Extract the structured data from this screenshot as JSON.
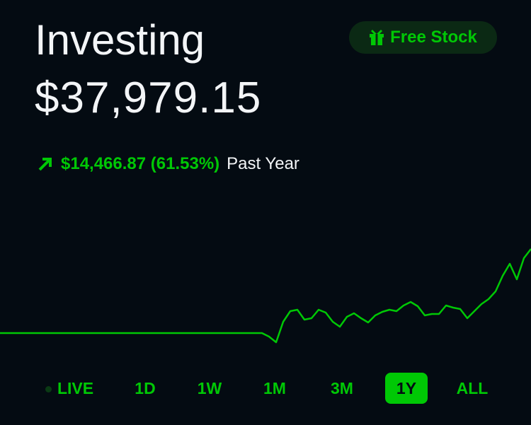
{
  "header": {
    "title": "Investing",
    "balance": "$37,979.15",
    "free_stock": "Free Stock"
  },
  "change": {
    "amount": "$14,466.87 (61.53%)",
    "period": "Past Year"
  },
  "chart_data": {
    "type": "line",
    "color": "#00c805",
    "values": [
      23512.28,
      23512.28,
      23512.28,
      23512.28,
      23512.28,
      23512.28,
      23512.28,
      23512.28,
      23512.28,
      23512.28,
      23512.28,
      23512.28,
      23512.28,
      23512.28,
      23512.28,
      23512.28,
      23512.28,
      23512.28,
      23512.28,
      23512.28,
      23512.28,
      23512.28,
      23512.28,
      23512.28,
      23512.28,
      23512.28,
      23512.28,
      23512.28,
      23512.28,
      23512.28,
      23512.28,
      23512.28,
      23512.28,
      23512.28,
      23512.28,
      23512.28,
      23512.28,
      23512.28,
      22904,
      21932,
      25457,
      27281,
      27524,
      25822,
      26065,
      27524,
      27038,
      25457,
      24606,
      26308,
      26916,
      26065,
      25336,
      26551,
      27159,
      27524,
      27281,
      28253,
      28861,
      28132,
      26551,
      26794,
      26794,
      28253,
      27889,
      27645,
      26065,
      27281,
      28496,
      29347,
      30685,
      33359,
      35426,
      32751,
      36398,
      37979.15
    ]
  },
  "ranges": {
    "items": [
      "LIVE",
      "1D",
      "1W",
      "1M",
      "3M",
      "1Y",
      "ALL"
    ],
    "selected": 5
  }
}
